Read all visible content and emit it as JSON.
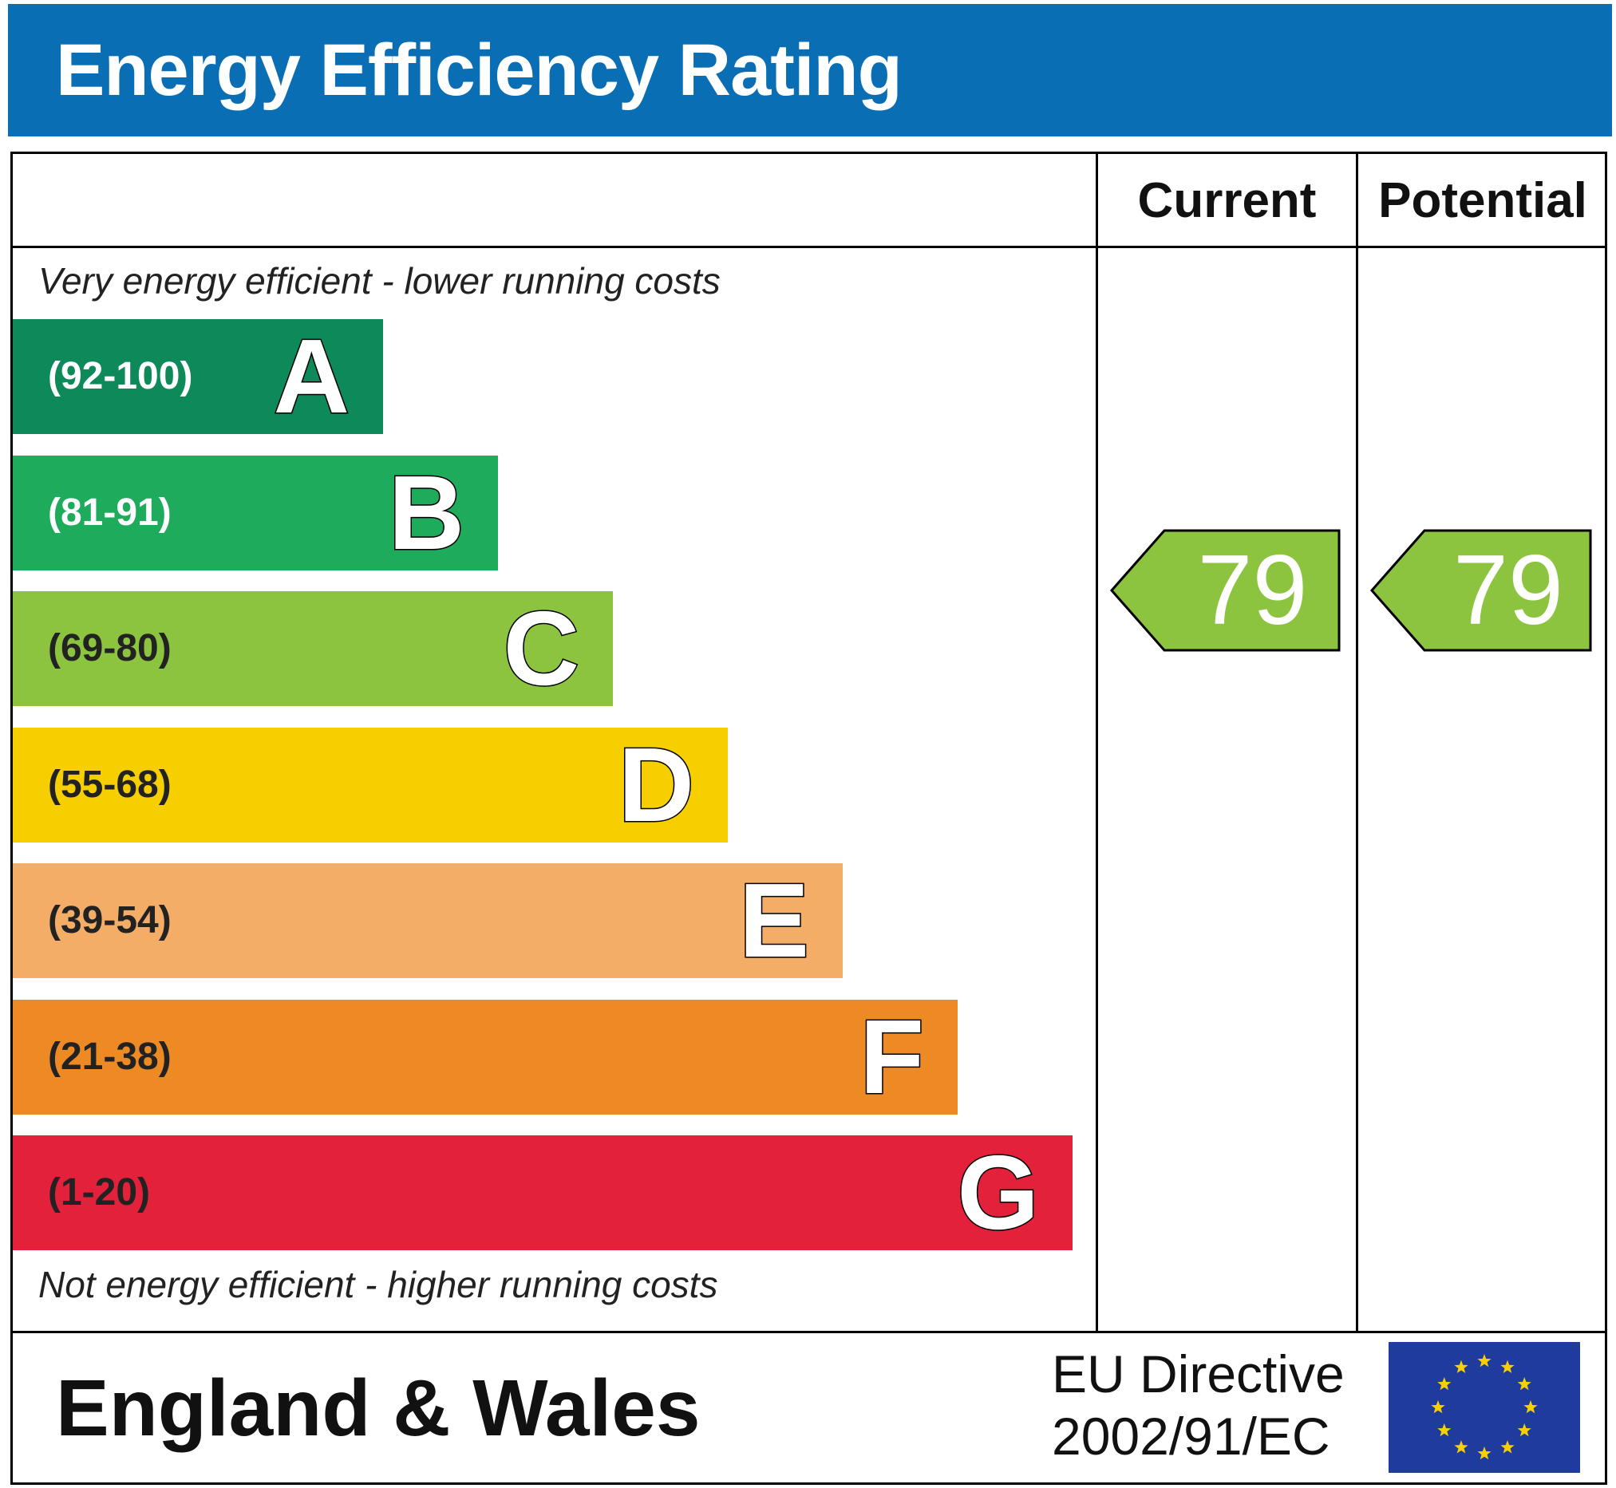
{
  "header": {
    "title": "Energy Efficiency Rating"
  },
  "columns": {
    "current": "Current",
    "potential": "Potential"
  },
  "notes": {
    "top": "Very energy efficient - lower running costs",
    "bottom": "Not energy efficient - higher running costs"
  },
  "footer": {
    "region": "England & Wales",
    "directive_line1": "EU Directive",
    "directive_line2": "2002/91/EC",
    "flag_icon": "eu-flag-icon"
  },
  "chart_data": {
    "type": "bar",
    "title": "Energy Efficiency Rating",
    "bands": [
      {
        "letter": "A",
        "range": "(92-100)",
        "color": "#0e8a5a",
        "text_color": "#ffffff"
      },
      {
        "letter": "B",
        "range": "(81-91)",
        "color": "#1eab5c",
        "text_color": "#ffffff"
      },
      {
        "letter": "C",
        "range": "(69-80)",
        "color": "#8cc43f",
        "text_color": "#222222"
      },
      {
        "letter": "D",
        "range": "(55-68)",
        "color": "#f7cf00",
        "text_color": "#222222"
      },
      {
        "letter": "E",
        "range": "(39-54)",
        "color": "#f4ad66",
        "text_color": "#222222"
      },
      {
        "letter": "F",
        "range": "(21-38)",
        "color": "#ee8a24",
        "text_color": "#222222"
      },
      {
        "letter": "G",
        "range": "(1-20)",
        "color": "#e3213a",
        "text_color": "#222222"
      }
    ],
    "current": {
      "value": 79,
      "band": "C",
      "color": "#8cc43f"
    },
    "potential": {
      "value": 79,
      "band": "C",
      "color": "#8cc43f"
    }
  }
}
